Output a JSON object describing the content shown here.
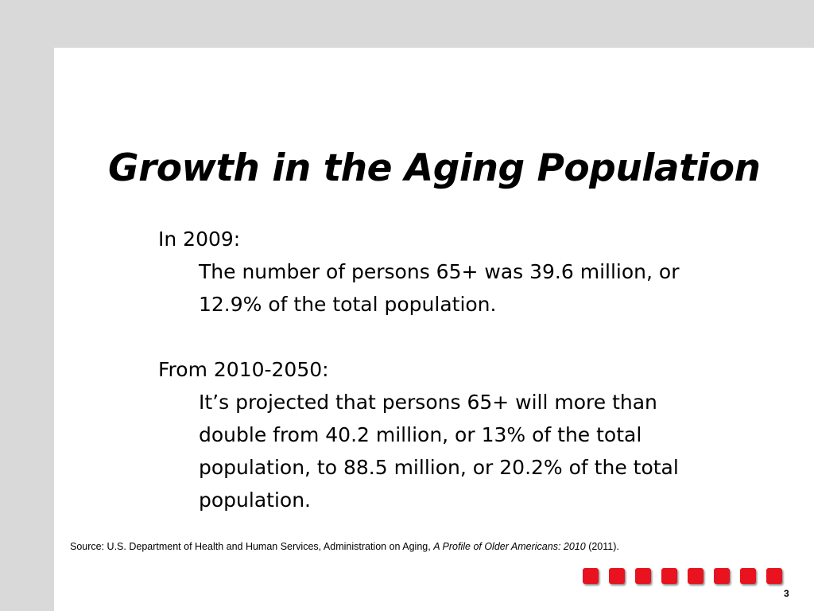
{
  "slide": {
    "title": "Growth in the Aging Population",
    "sections": [
      {
        "heading": "In 2009:",
        "detail": "The number of persons 65+ was 39.6 million, or 12.9% of the total population."
      },
      {
        "heading": "From 2010-2050:",
        "detail": "It’s projected that persons 65+ will more than double from 40.2 million, or 13% of the total population, to 88.5 million, or 20.2% of the total population."
      }
    ],
    "source": {
      "prefix": "Source: U.S. Department of Health and Human Services, Administration on Aging, ",
      "title": "A Profile of Older Americans: 2010",
      "suffix": " (2011)."
    },
    "page_number": "3"
  },
  "colors": {
    "background": "#d9d9d9",
    "slide": "#ffffff",
    "accent": "#e8131f"
  }
}
